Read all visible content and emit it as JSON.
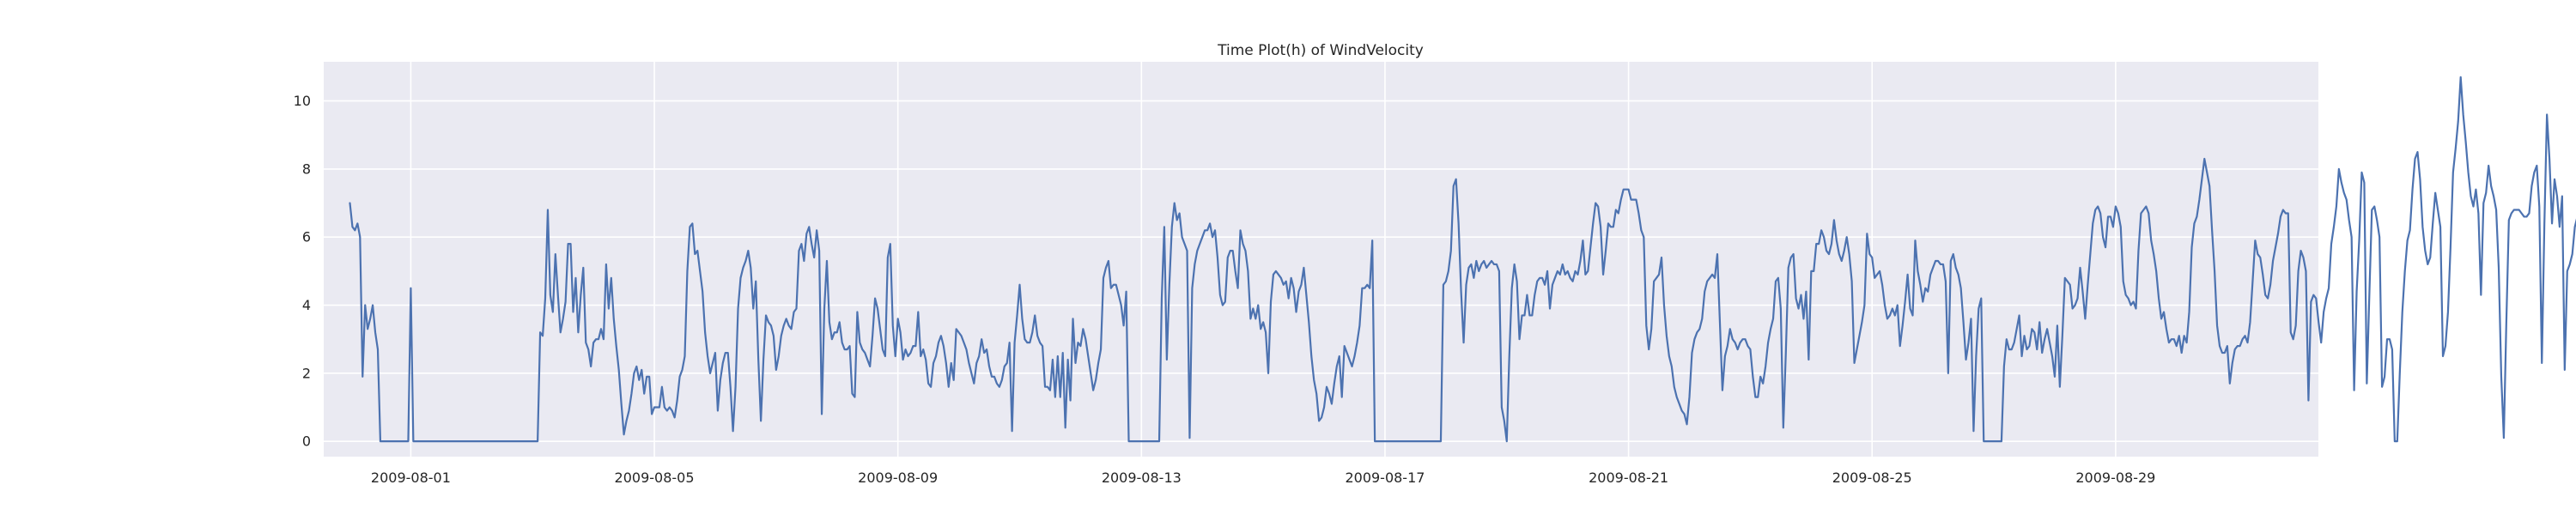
{
  "chart_data": {
    "type": "line",
    "title": "Time Plot(h) of WindVelocity",
    "xlabel": "",
    "ylabel": "",
    "x_tick_labels": [
      "2009-08-01",
      "2009-08-05",
      "2009-08-09",
      "2009-08-13",
      "2009-08-17",
      "2009-08-21",
      "2009-08-25",
      "2009-08-29"
    ],
    "y_tick_labels": [
      "0",
      "2",
      "4",
      "6",
      "8",
      "10"
    ],
    "x_range_days": [
      -1.43,
      31.33
    ],
    "ylim": [
      -0.45,
      11.15
    ],
    "grid": true,
    "colors": {
      "background": "#eaeaf2",
      "grid": "#ffffff",
      "series": "#4c72b0"
    },
    "series": [
      {
        "x_start": "2009-07-31 00:00",
        "step_hours": 1,
        "values": [
          7.0,
          6.3,
          6.2,
          6.4,
          6.0,
          1.9,
          4.0,
          3.3,
          3.6,
          4.0,
          3.2,
          2.7,
          0.0,
          0.0,
          0.0,
          0.0,
          0.0,
          0.0,
          0.0,
          0.0,
          0.0,
          0.0,
          0.0,
          0.0,
          4.5,
          0.0,
          0.0,
          0.0,
          0.0,
          0.0,
          0.0,
          0.0,
          0.0,
          0.0,
          0.0,
          0.0,
          0.0,
          0.0,
          0.0,
          0.0,
          0.0,
          0.0,
          0.0,
          0.0,
          0.0,
          0.0,
          0.0,
          0.0,
          0.0,
          0.0,
          0.0,
          0.0,
          0.0,
          0.0,
          0.0,
          0.0,
          0.0,
          0.0,
          0.0,
          0.0,
          0.0,
          0.0,
          0.0,
          0.0,
          0.0,
          0.0,
          0.0,
          0.0,
          0.0,
          0.0,
          0.0,
          0.0,
          0.0,
          0.0,
          0.0,
          3.2,
          3.1,
          4.2,
          6.8,
          4.3,
          3.8,
          5.5,
          4.3,
          3.2,
          3.6,
          4.1,
          5.8,
          5.8,
          3.8,
          4.8,
          3.2,
          4.3,
          5.1,
          2.9,
          2.7,
          2.2,
          2.9,
          3.0,
          3.0,
          3.3,
          3.0,
          5.2,
          3.9,
          4.8,
          3.6,
          2.8,
          2.1,
          1.1,
          0.2,
          0.6,
          0.9,
          1.4,
          2.0,
          2.2,
          1.8,
          2.1,
          1.4,
          1.9,
          1.9,
          0.8,
          1.0,
          1.0,
          1.0,
          1.6,
          1.0,
          0.9,
          1.0,
          0.9,
          0.7,
          1.2,
          1.9,
          2.1,
          2.5,
          5.0,
          6.3,
          6.4,
          5.5,
          5.6,
          5.0,
          4.4,
          3.2,
          2.5,
          2.0,
          2.3,
          2.6,
          0.9,
          1.8,
          2.3,
          2.6,
          2.6,
          1.6,
          0.3,
          1.6,
          3.9,
          4.8,
          5.1,
          5.3,
          5.6,
          5.1,
          3.9,
          4.7,
          2.4,
          0.6,
          2.4,
          3.7,
          3.5,
          3.4,
          3.1,
          2.1,
          2.5,
          3.1,
          3.4,
          3.6,
          3.4,
          3.3,
          3.8,
          3.9,
          5.6,
          5.8,
          5.3,
          6.1,
          6.3,
          5.8,
          5.4,
          6.2,
          5.6,
          0.8,
          3.9,
          5.3,
          3.5,
          3.0,
          3.2,
          3.2,
          3.5,
          2.9,
          2.7,
          2.7,
          2.8,
          1.4,
          1.3,
          3.8,
          2.9,
          2.7,
          2.6,
          2.4,
          2.2,
          3.1,
          4.2,
          3.9,
          3.3,
          2.7,
          2.5,
          5.4,
          5.8,
          3.4,
          2.5,
          3.6,
          3.2,
          2.4,
          2.7,
          2.5,
          2.6,
          2.8,
          2.8,
          3.8,
          2.5,
          2.7,
          2.4,
          1.7,
          1.6,
          2.3,
          2.5,
          2.9,
          3.1,
          2.8,
          2.3,
          1.6,
          2.3,
          1.8,
          3.3,
          3.2,
          3.1,
          2.9,
          2.7,
          2.3,
          2.0,
          1.7,
          2.3,
          2.5,
          3.0,
          2.6,
          2.7,
          2.2,
          1.9,
          1.9,
          1.7,
          1.6,
          1.8,
          2.2,
          2.3,
          2.9,
          0.3,
          2.9,
          3.7,
          4.6,
          3.6,
          3.0,
          2.9,
          2.9,
          3.2,
          3.7,
          3.1,
          2.9,
          2.8,
          1.6,
          1.6,
          1.5,
          2.4,
          1.3,
          2.5,
          1.3,
          2.6,
          0.4,
          2.4,
          1.2,
          3.6,
          2.3,
          2.9,
          2.8,
          3.3,
          3.0,
          2.5,
          2.0,
          1.5,
          1.8,
          2.3,
          2.7,
          4.8,
          5.1,
          5.3,
          4.5,
          4.6,
          4.6,
          4.3,
          4.0,
          3.4,
          4.4,
          0.0,
          0.0,
          0.0,
          0.0,
          0.0,
          0.0,
          0.0,
          0.0,
          0.0,
          0.0,
          0.0,
          0.0,
          0.0,
          4.2,
          6.3,
          2.4,
          4.6,
          6.3,
          7.0,
          6.5,
          6.7,
          6.0,
          5.8,
          5.6,
          0.1,
          4.5,
          5.2,
          5.6,
          5.8,
          6.0,
          6.2,
          6.2,
          6.4,
          6.0,
          6.2,
          5.4,
          4.3,
          4.0,
          4.1,
          5.4,
          5.6,
          5.6,
          5.0,
          4.5,
          6.2,
          5.8,
          5.6,
          5.0,
          3.6,
          3.9,
          3.6,
          4.0,
          3.3,
          3.5,
          3.2,
          2.0,
          4.1,
          4.9,
          5.0,
          4.9,
          4.8,
          4.6,
          4.7,
          4.2,
          4.8,
          4.5,
          3.8,
          4.4,
          4.6,
          5.1,
          4.3,
          3.5,
          2.5,
          1.8,
          1.4,
          0.6,
          0.7,
          1.0,
          1.6,
          1.4,
          1.1,
          1.7,
          2.2,
          2.5,
          1.3,
          2.8,
          2.6,
          2.4,
          2.2,
          2.5,
          2.9,
          3.4,
          4.5,
          4.5,
          4.6,
          4.5,
          5.9,
          0.0,
          0.0,
          0.0,
          0.0,
          0.0,
          0.0,
          0.0,
          0.0,
          0.0,
          0.0,
          0.0,
          0.0,
          0.0,
          0.0,
          0.0,
          0.0,
          0.0,
          0.0,
          0.0,
          0.0,
          0.0,
          0.0,
          0.0,
          0.0,
          0.0,
          0.0,
          0.0,
          4.6,
          4.7,
          5.0,
          5.6,
          7.5,
          7.7,
          6.4,
          4.4,
          2.9,
          4.6,
          5.1,
          5.2,
          4.8,
          5.3,
          5.0,
          5.2,
          5.3,
          5.1,
          5.2,
          5.3,
          5.2,
          5.2,
          5.0,
          1.0,
          0.6,
          0.0,
          2.5,
          4.5,
          5.2,
          4.7,
          3.0,
          3.7,
          3.7,
          4.3,
          3.7,
          3.7,
          4.3,
          4.7,
          4.8,
          4.8,
          4.6,
          5.0,
          3.9,
          4.6,
          4.8,
          5.0,
          4.9,
          5.2,
          4.9,
          5.0,
          4.8,
          4.7,
          5.0,
          4.9,
          5.3,
          5.9,
          4.9,
          5.0,
          5.7,
          6.4,
          7.0,
          6.9,
          6.3,
          4.9,
          5.6,
          6.4,
          6.3,
          6.3,
          6.8,
          6.7,
          7.1,
          7.4,
          7.4,
          7.4,
          7.1,
          7.1,
          7.1,
          6.7,
          6.2,
          6.0,
          3.4,
          2.7,
          3.3,
          4.7,
          4.8,
          4.9,
          5.4,
          4.0,
          3.1,
          2.5,
          2.2,
          1.6,
          1.3,
          1.1,
          0.9,
          0.8,
          0.5,
          1.3,
          2.6,
          3.0,
          3.2,
          3.3,
          3.6,
          4.4,
          4.7,
          4.8,
          4.9,
          4.8,
          5.5,
          3.5,
          1.5,
          2.5,
          2.8,
          3.3,
          3.0,
          2.9,
          2.7,
          2.9,
          3.0,
          3.0,
          2.8,
          2.7,
          1.9,
          1.3,
          1.3,
          1.9,
          1.7,
          2.2,
          2.9,
          3.3,
          3.6,
          4.7,
          4.8,
          3.9,
          0.4,
          2.6,
          5.1,
          5.4,
          5.5,
          4.2,
          3.9,
          4.3,
          3.6,
          4.4,
          2.4,
          5.0,
          5.0,
          5.8,
          5.8,
          6.2,
          6.0,
          5.6,
          5.5,
          5.8,
          6.5,
          5.9,
          5.5,
          5.3,
          5.6,
          6.0,
          5.5,
          4.7,
          2.3,
          2.7,
          3.1,
          3.5,
          4.0,
          6.1,
          5.5,
          5.4,
          4.8,
          4.9,
          5.0,
          4.6,
          4.0,
          3.6,
          3.7,
          3.9,
          3.7,
          4.0,
          2.8,
          3.4,
          4.1,
          4.9,
          3.9,
          3.7,
          5.9,
          5.0,
          4.6,
          4.1,
          4.5,
          4.4,
          4.9,
          5.1,
          5.3,
          5.3,
          5.2,
          5.2,
          4.7,
          2.0,
          5.3,
          5.5,
          5.1,
          4.9,
          4.5,
          3.5,
          2.4,
          2.9,
          3.6,
          0.3,
          2.5,
          3.9,
          4.2,
          0.0,
          0.0,
          0.0,
          0.0,
          0.0,
          0.0,
          0.0,
          0.0,
          2.2,
          3.0,
          2.7,
          2.7,
          2.9,
          3.3,
          3.7,
          2.5,
          3.1,
          2.7,
          2.8,
          3.3,
          3.2,
          2.7,
          3.5,
          2.6,
          3.0,
          3.3,
          2.9,
          2.5,
          1.9,
          3.4,
          1.6,
          3.1,
          4.8,
          4.7,
          4.6,
          3.9,
          4.0,
          4.2,
          5.1,
          4.4,
          3.6,
          4.6,
          5.5,
          6.4,
          6.8,
          6.9,
          6.7,
          6.0,
          5.7,
          6.6,
          6.6,
          6.3,
          6.9,
          6.7,
          6.3,
          4.7,
          4.3,
          4.2,
          4.0,
          4.1,
          3.9,
          5.6,
          6.7,
          6.8,
          6.9,
          6.7,
          5.9,
          5.5,
          5.0,
          4.2,
          3.6,
          3.8,
          3.3,
          2.9,
          3.0,
          3.0,
          2.8,
          3.1,
          2.6,
          3.1,
          2.9,
          3.8,
          5.7,
          6.4,
          6.6,
          7.1,
          7.7,
          8.3,
          7.9,
          7.5,
          6.2,
          5.0,
          3.4,
          2.8,
          2.6,
          2.6,
          2.8,
          1.7,
          2.3,
          2.7,
          2.8,
          2.8,
          3.0,
          3.1,
          2.9,
          3.5,
          4.7,
          5.9,
          5.5,
          5.4,
          4.9,
          4.3,
          4.2,
          4.6,
          5.3,
          5.7,
          6.1,
          6.6,
          6.8,
          6.7,
          6.7,
          3.2,
          3.0,
          3.4,
          5.0,
          5.6,
          5.4,
          5.0,
          1.2,
          4.1,
          4.3,
          4.2,
          3.5,
          2.9,
          3.8,
          4.2,
          4.5,
          5.8,
          6.3,
          6.9,
          8.0,
          7.6,
          7.3,
          7.1,
          6.5,
          6.0,
          1.5,
          4.4,
          5.9,
          7.9,
          7.6,
          1.7,
          4.3,
          6.8,
          6.9,
          6.5,
          6.0,
          1.6,
          1.9,
          3.0,
          3.0,
          2.7,
          0.0,
          0.0,
          2.0,
          3.8,
          5.0,
          5.9,
          6.2,
          7.4,
          8.3,
          8.5,
          7.7,
          6.3,
          5.6,
          5.2,
          5.4,
          6.4,
          7.3,
          6.8,
          6.3,
          2.5,
          2.8,
          3.8,
          5.7,
          7.9,
          8.6,
          9.4,
          10.7,
          9.6,
          8.8,
          7.9,
          7.2,
          6.9,
          7.4,
          6.7,
          4.3,
          7.0,
          7.3,
          8.1,
          7.5,
          7.2,
          6.8,
          5.1,
          1.9,
          0.1,
          3.5,
          6.5,
          6.7,
          6.8,
          6.8,
          6.8,
          6.7,
          6.6,
          6.6,
          6.7,
          7.5,
          7.9,
          8.1,
          6.9,
          2.3,
          6.4,
          9.6,
          8.3,
          6.4,
          7.7,
          7.2,
          6.3,
          7.2,
          2.1,
          5.0,
          5.2,
          5.5,
          6.3,
          6.6,
          6.9
        ]
      }
    ]
  }
}
